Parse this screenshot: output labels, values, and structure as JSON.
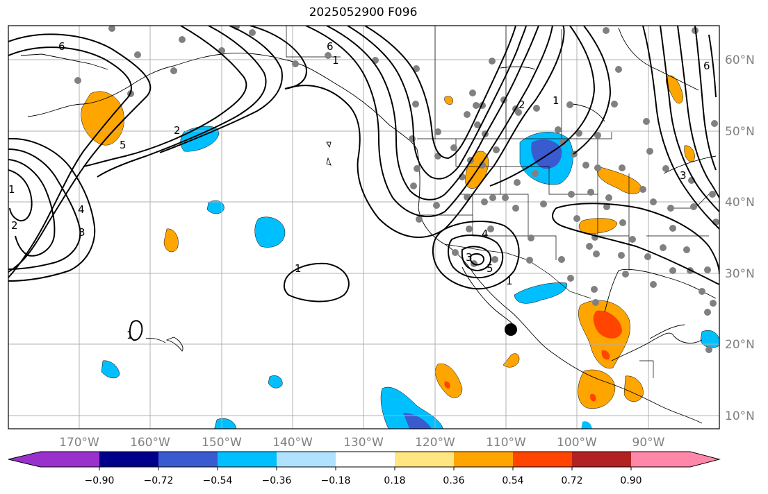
{
  "title": "2025052900 F096",
  "lon_labels": [
    "170°W",
    "160°W",
    "150°W",
    "140°W",
    "130°W",
    "120°W",
    "110°W",
    "100°W",
    "90°W"
  ],
  "lat_labels": [
    "60°N",
    "50°N",
    "40°N",
    "30°N",
    "20°N",
    "10°N"
  ],
  "colorbar": {
    "ticks": [
      "−0.90",
      "−0.72",
      "−0.54",
      "−0.36",
      "−0.18",
      "0.18",
      "0.36",
      "0.54",
      "0.72",
      "0.90"
    ],
    "colors": [
      "#9932cc",
      "#00008b",
      "#3a5bd0",
      "#00bfff",
      "#b0e2ff",
      "#ffffff",
      "#ffe680",
      "#ffa500",
      "#ff4500",
      "#b22222",
      "#ff88aa"
    ]
  },
  "contour_labels": [
    "6",
    "5",
    "4",
    "3",
    "2",
    "1",
    "1",
    "2",
    "3",
    "4",
    "5",
    "6",
    "1",
    "2",
    "3",
    "1",
    "1",
    "1",
    "2",
    "3",
    "6"
  ],
  "marker": {
    "type": "black-dot",
    "lon": -109.5,
    "lat": 22.2
  }
}
